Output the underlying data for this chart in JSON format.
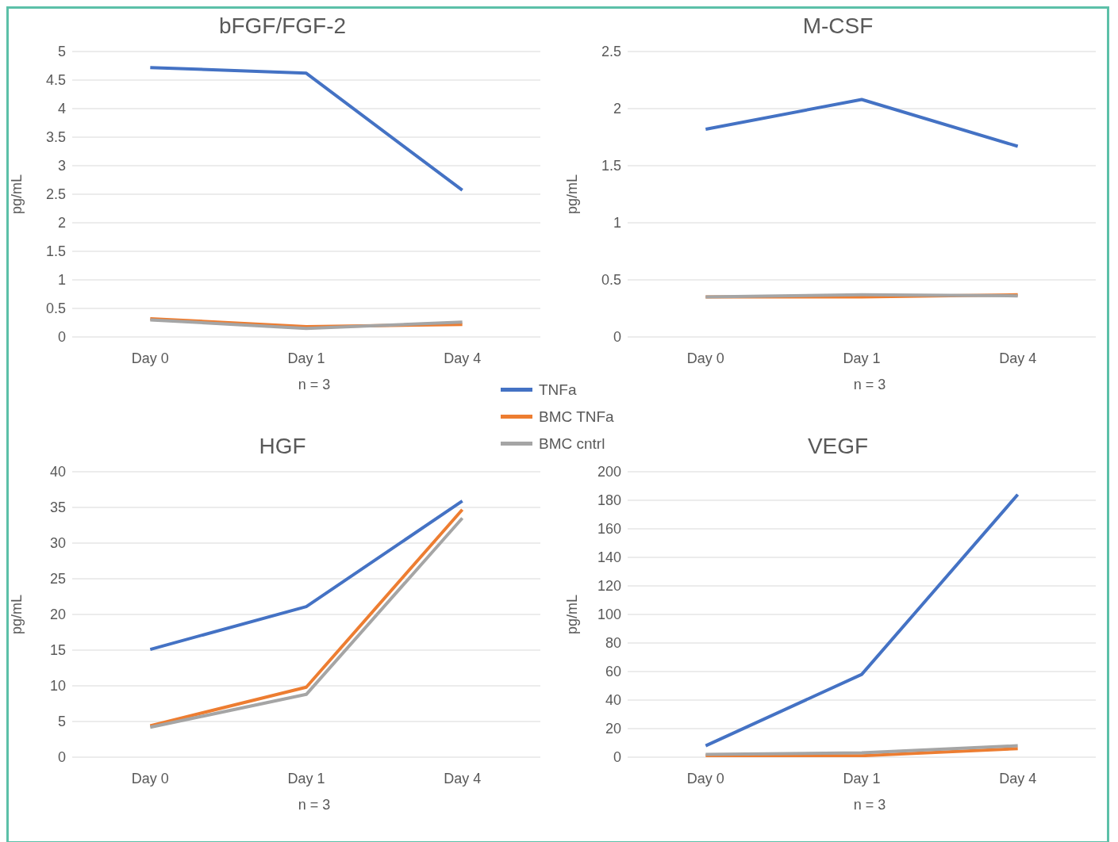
{
  "chart_data": [
    {
      "type": "line",
      "title": "bFGF/FGF-2",
      "xlabel": "n = 3",
      "ylabel": "pg/mL",
      "categories": [
        "Day 0",
        "Day 1",
        "Day 4"
      ],
      "ylim": [
        0,
        5
      ],
      "yticks": [
        0,
        0.5,
        1,
        1.5,
        2,
        2.5,
        3,
        3.5,
        4,
        4.5,
        5
      ],
      "grid": "y",
      "legend": "bottom right",
      "series": [
        {
          "name": "TNFa",
          "color": "#4472c4",
          "values": [
            4.72,
            4.62,
            2.57
          ]
        },
        {
          "name": "BMC TNFa",
          "color": "#ed7d31",
          "values": [
            0.32,
            0.18,
            0.22
          ]
        },
        {
          "name": "BMC cntrl",
          "color": "#a5a5a5",
          "values": [
            0.3,
            0.15,
            0.26
          ]
        }
      ]
    },
    {
      "type": "line",
      "title": "M-CSF",
      "xlabel": "n = 3",
      "ylabel": "pg/mL",
      "categories": [
        "Day 0",
        "Day 1",
        "Day 4"
      ],
      "ylim": [
        0,
        2.5
      ],
      "yticks": [
        0,
        0.5,
        1,
        1.5,
        2,
        2.5
      ],
      "grid": "y",
      "series": [
        {
          "color": "#4472c4",
          "values": [
            1.82,
            2.08,
            1.67
          ]
        },
        {
          "color": "#ed7d31",
          "values": [
            0.35,
            0.35,
            0.37
          ]
        },
        {
          "color": "#a5a5a5",
          "values": [
            0.35,
            0.37,
            0.36
          ]
        }
      ]
    },
    {
      "type": "line",
      "title": "HGF",
      "xlabel": "n = 3",
      "ylabel": "pg/mL",
      "categories": [
        "Day 0",
        "Day 1",
        "Day 4"
      ],
      "ylim": [
        0,
        40
      ],
      "yticks": [
        0,
        5,
        10,
        15,
        20,
        25,
        30,
        35,
        40
      ],
      "grid": "y",
      "series": [
        {
          "color": "#4472c4",
          "values": [
            15.1,
            21.1,
            35.9
          ]
        },
        {
          "color": "#ed7d31",
          "values": [
            4.4,
            9.8,
            34.7
          ]
        },
        {
          "color": "#a5a5a5",
          "values": [
            4.2,
            8.8,
            33.5
          ]
        }
      ]
    },
    {
      "type": "line",
      "title": "VEGF",
      "xlabel": "n = 3",
      "ylabel": "pg/mL",
      "categories": [
        "Day 0",
        "Day 1",
        "Day 4"
      ],
      "ylim": [
        0,
        200
      ],
      "yticks": [
        0,
        20,
        40,
        60,
        80,
        100,
        120,
        140,
        160,
        180,
        200
      ],
      "grid": "y",
      "series": [
        {
          "color": "#4472c4",
          "values": [
            8,
            58,
            184
          ]
        },
        {
          "color": "#ed7d31",
          "values": [
            1,
            1,
            6
          ]
        },
        {
          "color": "#a5a5a5",
          "values": [
            2,
            3,
            8
          ]
        }
      ]
    }
  ]
}
